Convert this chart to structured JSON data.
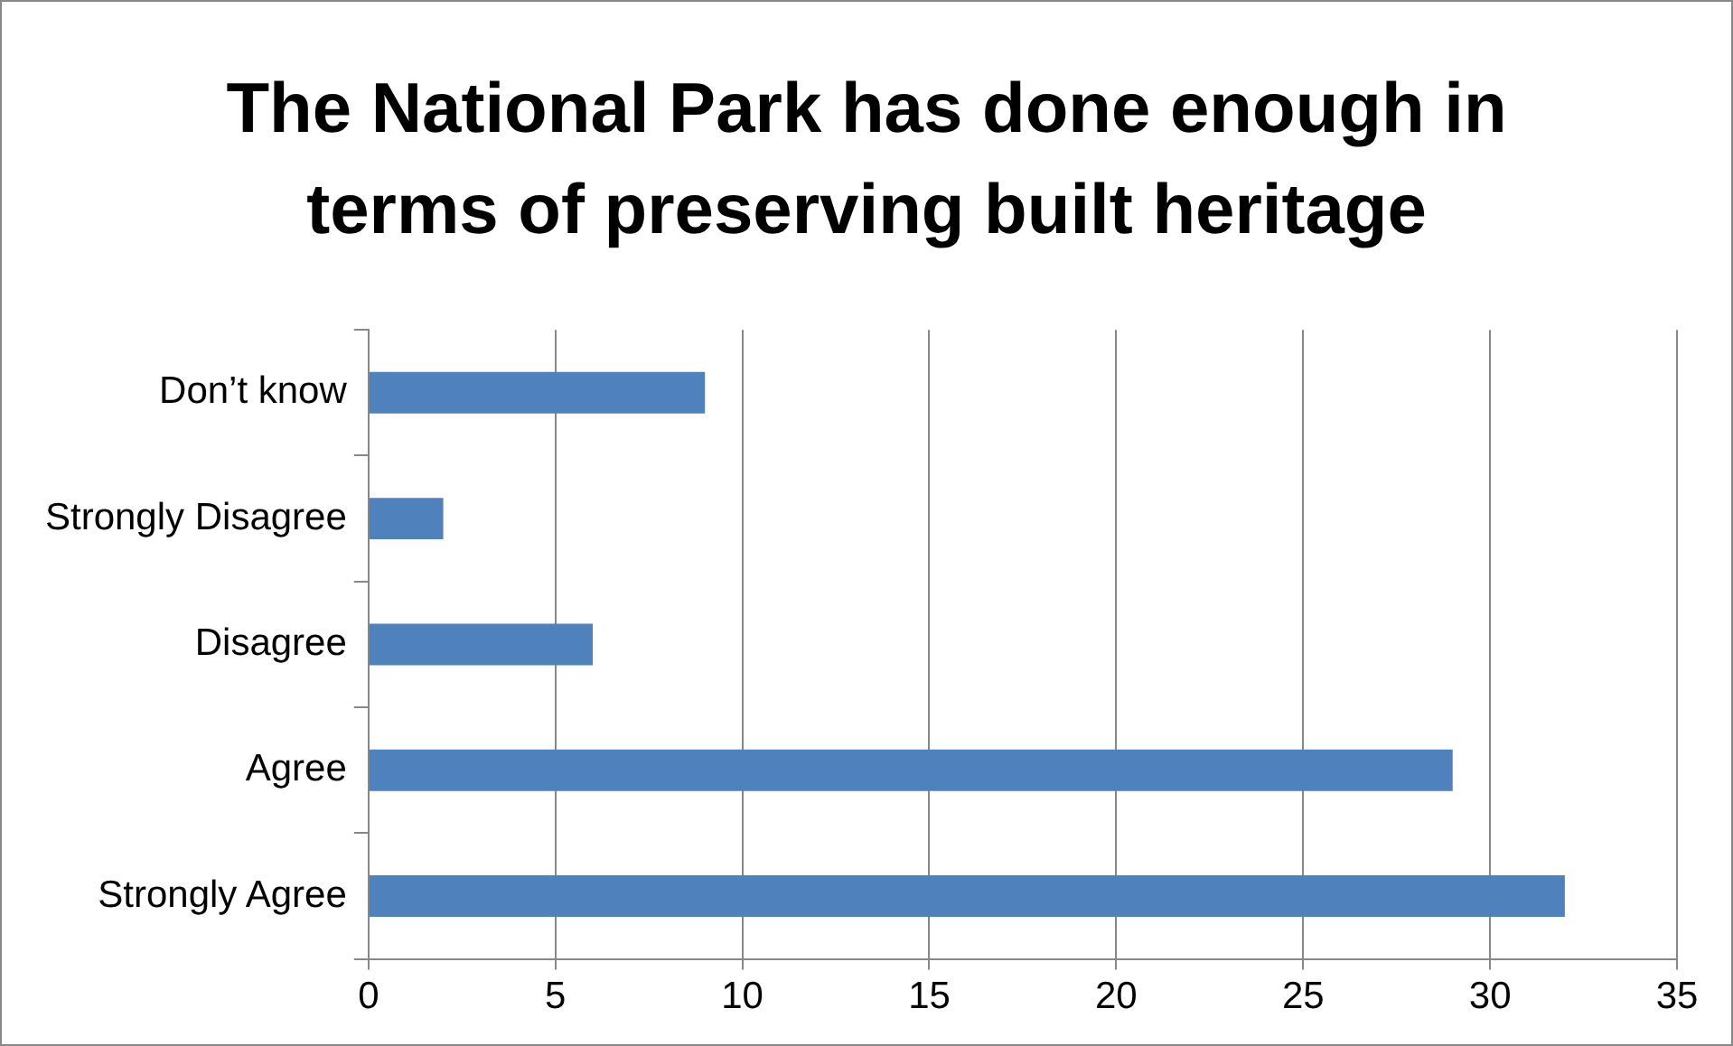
{
  "chart_data": {
    "type": "bar",
    "orientation": "horizontal",
    "title": "The National Park has done enough in terms of preserving built heritage",
    "categories": [
      "Don’t know",
      "Strongly Disagree",
      "Disagree",
      "Agree",
      "Strongly Agree"
    ],
    "values": [
      9,
      2,
      6,
      29,
      32
    ],
    "color": "#4f81bd",
    "xlim": [
      0,
      35
    ],
    "xticks": [
      0,
      5,
      10,
      15,
      20,
      25,
      30,
      35
    ],
    "grid": "x",
    "legend": false
  }
}
